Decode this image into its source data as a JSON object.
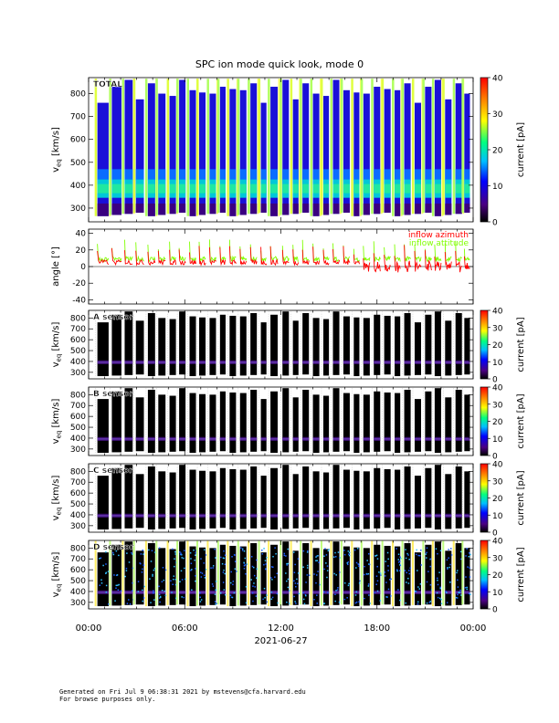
{
  "chart_data": {
    "type": "heatmap",
    "title": "SPC ion mode quick look, mode 0",
    "time_axis": {
      "tick_labels": [
        "00:00",
        "06:00",
        "12:00",
        "18:00",
        "00:00"
      ],
      "date_label": "2021-06-27",
      "range_hours": [
        0,
        24
      ]
    },
    "panels": [
      {
        "id": "total",
        "type": "heatmap",
        "label": "TOTAL",
        "ylabel": "v_eq [km/s]",
        "ylabel_main": "v",
        "ylabel_sub": "eq",
        "ylabel_units": "[km/s]",
        "yticks": [
          300,
          400,
          500,
          600,
          700,
          800
        ],
        "ylim": [
          240,
          870
        ],
        "colorbar": {
          "label": "current [pA]",
          "ticks": [
            0,
            10,
            20,
            30,
            40
          ],
          "range": [
            0,
            40
          ]
        }
      },
      {
        "id": "angle",
        "type": "line",
        "ylabel": "angle [°]",
        "yticks": [
          -40,
          -20,
          0,
          20,
          40
        ],
        "ylim": [
          -45,
          45
        ],
        "series": [
          {
            "name": "inflow azimuth",
            "color": "#ff0000"
          },
          {
            "name": "inflow attitude",
            "color": "#80ff00"
          }
        ]
      },
      {
        "id": "a-sensor",
        "type": "heatmap",
        "label": "A sensor",
        "ylabel_main": "v",
        "ylabel_sub": "eq",
        "ylabel_units": "[km/s]",
        "yticks": [
          300,
          400,
          500,
          600,
          700,
          800
        ],
        "ylim": [
          240,
          870
        ],
        "colorbar": {
          "label": "current [pA]",
          "ticks": [
            0,
            10,
            20,
            30,
            40
          ],
          "range": [
            0,
            40
          ]
        }
      },
      {
        "id": "b-sensor",
        "type": "heatmap",
        "label": "B sensor",
        "ylabel_main": "v",
        "ylabel_sub": "eq",
        "ylabel_units": "[km/s]",
        "yticks": [
          300,
          400,
          500,
          600,
          700,
          800
        ],
        "ylim": [
          240,
          870
        ],
        "colorbar": {
          "label": "current [pA]",
          "ticks": [
            0,
            10,
            20,
            30,
            40
          ],
          "range": [
            0,
            40
          ]
        }
      },
      {
        "id": "c-sensor",
        "type": "heatmap",
        "label": "C sensor",
        "ylabel_main": "v",
        "ylabel_sub": "eq",
        "ylabel_units": "[km/s]",
        "yticks": [
          300,
          400,
          500,
          600,
          700,
          800
        ],
        "ylim": [
          240,
          870
        ],
        "colorbar": {
          "label": "current [pA]",
          "ticks": [
            0,
            10,
            20,
            30,
            40
          ],
          "range": [
            0,
            40
          ]
        }
      },
      {
        "id": "d-sensor",
        "type": "heatmap",
        "label": "D sensor",
        "ylabel_main": "v",
        "ylabel_sub": "eq",
        "ylabel_units": "[km/s]",
        "yticks": [
          300,
          400,
          500,
          600,
          700,
          800
        ],
        "ylim": [
          240,
          870
        ],
        "colorbar": {
          "label": "current [pA]",
          "ticks": [
            0,
            10,
            20,
            30,
            40
          ],
          "range": [
            0,
            40
          ]
        }
      }
    ],
    "measurement_blocks_hours": [
      [
        0.55,
        1.25
      ],
      [
        1.45,
        2.05
      ],
      [
        2.25,
        2.75
      ],
      [
        2.95,
        3.45
      ],
      [
        3.7,
        4.15
      ],
      [
        4.35,
        4.8
      ],
      [
        5.05,
        5.45
      ],
      [
        5.65,
        6.05
      ],
      [
        6.3,
        6.7
      ],
      [
        6.9,
        7.3
      ],
      [
        7.55,
        7.95
      ],
      [
        8.2,
        8.55
      ],
      [
        8.8,
        9.2
      ],
      [
        9.45,
        9.85
      ],
      [
        10.1,
        10.5
      ],
      [
        10.75,
        11.1
      ],
      [
        11.35,
        11.8
      ],
      [
        12.1,
        12.5
      ],
      [
        12.75,
        13.1
      ],
      [
        13.35,
        13.75
      ],
      [
        14.0,
        14.4
      ],
      [
        14.65,
        15.0
      ],
      [
        15.25,
        15.65
      ],
      [
        15.9,
        16.3
      ],
      [
        16.55,
        16.9
      ],
      [
        17.15,
        17.55
      ],
      [
        17.8,
        18.2
      ],
      [
        18.45,
        18.85
      ],
      [
        19.1,
        19.45
      ],
      [
        19.7,
        20.1
      ],
      [
        20.35,
        20.75
      ],
      [
        21.0,
        21.4
      ],
      [
        21.6,
        22.0
      ],
      [
        22.25,
        22.65
      ],
      [
        22.9,
        23.3
      ],
      [
        23.45,
        23.8
      ]
    ],
    "beam_center_kms": 390
  },
  "footer": {
    "line1": "Generated on Fri Jul  9 06:38:31 2021 by mstevens@cfa.harvard.edu",
    "line2": "For browse purposes only."
  }
}
